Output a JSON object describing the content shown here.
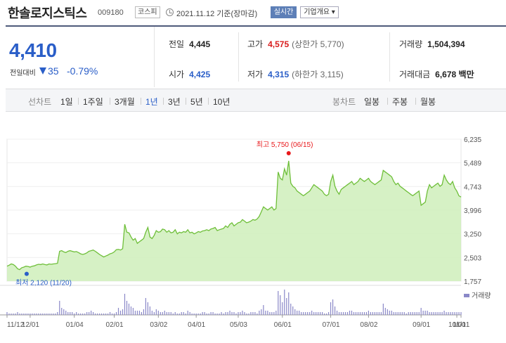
{
  "header": {
    "stock_name": "한솔로지스틱스",
    "stock_code": "009180",
    "market": "코스피",
    "date_text": "2021.11.12  기준(장마감)",
    "realtime_label": "실시간",
    "company_label": "기업개요 ▾"
  },
  "summary": {
    "price": "4,410",
    "change_label": "전일대비",
    "change": "35",
    "change_pct": "-0.79%",
    "prev_close_label": "전일",
    "prev_close": "4,445",
    "open_label": "시가",
    "open": "4,425",
    "high_label": "고가",
    "high": "4,575",
    "upper_limit": "(상한가 5,770)",
    "low_label": "저가",
    "low": "4,315",
    "lower_limit": "(하한가 3,115)",
    "volume_label": "거래량",
    "volume": "1,504,394",
    "amount_label": "거래대금",
    "amount": "6,678 백만"
  },
  "period_bar": {
    "line_title": "선차트",
    "line_periods": [
      "1일",
      "1주일",
      "3개월",
      "1년",
      "3년",
      "5년",
      "10년"
    ],
    "active": "1년",
    "candle_title": "봉차트",
    "candle_periods": [
      "일봉",
      "주봉",
      "월봉"
    ]
  },
  "chart_data": {
    "type": "area",
    "y_ticks": [
      "6,235",
      "5,489",
      "4,743",
      "3,996",
      "3,250",
      "2,503",
      "1,757"
    ],
    "ylim": [
      1757,
      6235
    ],
    "x_ticks": [
      "11/12",
      "12/01",
      "01/04",
      "02/01",
      "03/02",
      "04/01",
      "05/03",
      "06/01",
      "07/01",
      "08/02",
      "09/01",
      "10/01",
      "11/01"
    ],
    "max_label": "최고 5,750 (06/15)",
    "min_label": "최저 2,120 (11/20)",
    "volume_label": "거래량",
    "colors": {
      "line": "#6fbf3a",
      "fill": "#cfeebb",
      "max": "#e8181b",
      "min": "#2a5ec8",
      "volume": "#8a88c8"
    },
    "series": [
      {
        "values": [
          2230,
          2260,
          2300,
          2280,
          2230,
          2150,
          2120,
          2180,
          2200,
          2230,
          2220,
          2200,
          2230,
          2240,
          2270,
          2290,
          2280,
          2300,
          2280,
          2270,
          2300,
          2290,
          2300,
          2310,
          2320,
          2700,
          2720,
          2680,
          2660,
          2700,
          2720,
          2700,
          2680,
          2690,
          2660,
          2620,
          2600,
          2620,
          2650,
          2700,
          2720,
          2740,
          2700,
          2650,
          2600,
          2560,
          2520,
          2550,
          2580,
          2620,
          2640,
          2680,
          2750,
          2760,
          2740,
          2780,
          3550,
          3300,
          3280,
          3150,
          3050,
          3100,
          2950,
          3000,
          3050,
          3100,
          3300,
          3450,
          3150,
          3100,
          3200,
          3350,
          3300,
          3320,
          3400,
          3380,
          3300,
          3350,
          3280,
          3300,
          3380,
          3250,
          3300,
          3280,
          3320,
          3300,
          3380,
          3280,
          3300,
          3250,
          3280,
          3320,
          3300,
          3340,
          3350,
          3380,
          3350,
          3400,
          3420,
          3450,
          3350,
          3380,
          3400,
          3420,
          3500,
          3450,
          3550,
          3600,
          3500,
          3550,
          3600,
          3620,
          3700,
          3650,
          3600,
          3620,
          3650,
          3700,
          3680,
          3720,
          3800,
          3950,
          4100,
          4050,
          4000,
          4050,
          4100,
          4000,
          4050,
          5200,
          5000,
          4950,
          5300,
          5100,
          5550,
          4850,
          4750,
          4700,
          4600,
          4550,
          4500,
          4450,
          4500,
          4550,
          4600,
          4700,
          4800,
          4750,
          4700,
          4650,
          4600,
          4500,
          4450,
          4500,
          4900,
          5100,
          4750,
          4600,
          4500,
          4650,
          4700,
          4750,
          4800,
          4850,
          4900,
          4800,
          4850,
          4900,
          5000,
          4950,
          4900,
          4950,
          5000,
          4900,
          4850,
          4800,
          4850,
          4900,
          4950,
          5250,
          5200,
          5150,
          5100,
          5050,
          4900,
          4800,
          4850,
          4750,
          4700,
          4650,
          4600,
          4550,
          4500,
          4450,
          4500,
          4550,
          4600,
          4150,
          4200,
          4250,
          4600,
          4800,
          4700,
          4750,
          4800,
          4850,
          4750,
          4800,
          5100,
          4950,
          4850,
          4800,
          4900,
          4700,
          4600,
          4450,
          4410
        ]
      }
    ],
    "volume": [
      2,
      1,
      1,
      1,
      1,
      2,
      1,
      1,
      1,
      1,
      1,
      1,
      1,
      1,
      1,
      1,
      1,
      1,
      1,
      1,
      1,
      1,
      1,
      1,
      2,
      10,
      5,
      4,
      3,
      2,
      2,
      2,
      1,
      2,
      1,
      1,
      1,
      1,
      2,
      2,
      3,
      2,
      1,
      1,
      1,
      1,
      1,
      1,
      1,
      2,
      1,
      1,
      2,
      5,
      3,
      4,
      15,
      10,
      8,
      6,
      5,
      3,
      3,
      3,
      2,
      4,
      12,
      9,
      6,
      3,
      2,
      4,
      3,
      2,
      2,
      3,
      2,
      2,
      2,
      1,
      2,
      1,
      1,
      2,
      2,
      1,
      3,
      2,
      1,
      1,
      1,
      1,
      1,
      2,
      2,
      1,
      1,
      2,
      2,
      1,
      1,
      1,
      2,
      1,
      2,
      2,
      3,
      2,
      2,
      1,
      2,
      2,
      3,
      2,
      1,
      1,
      2,
      2,
      2,
      1,
      3,
      4,
      7,
      3,
      3,
      2,
      2,
      2,
      3,
      17,
      14,
      9,
      18,
      12,
      16,
      8,
      6,
      4,
      3,
      3,
      2,
      2,
      2,
      2,
      2,
      3,
      2,
      2,
      2,
      2,
      2,
      1,
      1,
      2,
      9,
      11,
      6,
      3,
      2,
      2,
      2,
      2,
      2,
      3,
      3,
      2,
      2,
      2,
      2,
      2,
      2,
      2,
      3,
      2,
      2,
      2,
      2,
      2,
      2,
      8,
      5,
      4,
      3,
      3,
      2,
      2,
      2,
      2,
      2,
      2,
      1,
      2,
      2,
      2,
      2,
      2,
      2,
      5,
      3,
      3,
      3,
      2,
      2,
      2,
      2,
      2,
      2,
      2,
      3,
      2,
      2,
      2,
      2,
      2,
      2,
      2,
      2
    ]
  }
}
